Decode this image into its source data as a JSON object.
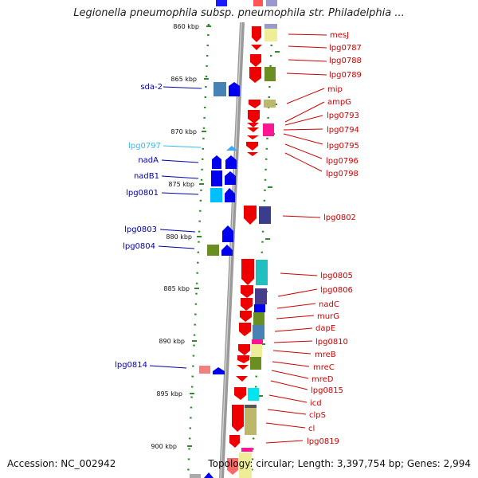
{
  "header": {
    "title": "Legionella pneumophila subsp. pneumophila str. Philadelphia ..."
  },
  "footer": {
    "accession": "Accession: NC_002942",
    "stats": "Topology: circular; Length: 3,397,754 bp; Genes: 2,994"
  },
  "ticks": [
    "860 kbp",
    "865 kbp",
    "870 kbp",
    "875 kbp",
    "880 kbp",
    "885 kbp",
    "890 kbp",
    "895 kbp",
    "900 kbp"
  ],
  "reverse_genes": [
    "sda-2",
    "lpg0797",
    "nadA",
    "nadB1",
    "lpg0801",
    "lpg0803",
    "lpg0804",
    "lpg0814"
  ],
  "forward_genes": [
    "mesJ",
    "lpg0787",
    "lpg0788",
    "lpg0789",
    "mip",
    "ampG",
    "lpg0793",
    "lpg0794",
    "lpg0795",
    "lpg0796",
    "lpg0798",
    "lpg0802",
    "lpg0805",
    "lpg0806",
    "nadC",
    "murG",
    "dapE",
    "lpg0810",
    "mreB",
    "mreC",
    "mreD",
    "lpg0815",
    "icd",
    "clpS",
    "cl",
    "lpg0819"
  ],
  "colors": {
    "forward_label": "#cc0000",
    "reverse_label": "#0000aa",
    "highlight_label": "#33bbee",
    "backbone": "#9a9a9a",
    "dots": "#2e8b2e"
  }
}
